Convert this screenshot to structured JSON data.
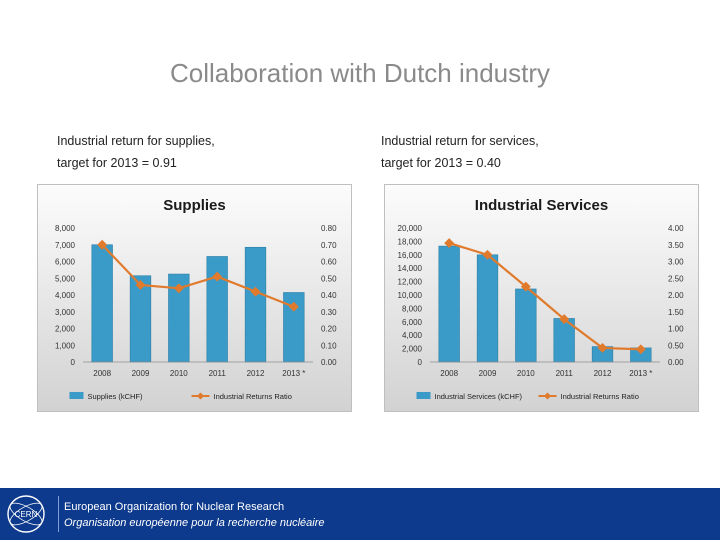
{
  "title": "Collaboration with Dutch industry",
  "captions": {
    "left": {
      "line1": "Industrial return for supplies,",
      "line2": "target for 2013 = 0.91"
    },
    "right": {
      "line1": "Industrial return for services,",
      "line2": "target for 2013 = 0.40"
    }
  },
  "footer": {
    "org_en": "European Organization for Nuclear Research",
    "org_fr": "Organisation européenne pour la recherche nucléaire",
    "logo_text": "CERN"
  },
  "colors": {
    "bar": "#3a9bc8",
    "line": "#e07a2c",
    "chart_bg_top": "#fcfcfc",
    "chart_bg_bottom": "#d2d2d2",
    "footer_bg": "#0d3a8c"
  },
  "chart_data": [
    {
      "type": "bar",
      "title": "Supplies",
      "categories": [
        "2008",
        "2009",
        "2010",
        "2011",
        "2012",
        "2013 *"
      ],
      "series": [
        {
          "name": "Supplies (kCHF)",
          "axis": "left",
          "kind": "bar",
          "values": [
            7000,
            5150,
            5250,
            6300,
            6850,
            4150
          ]
        },
        {
          "name": "Industrial Returns Ratio",
          "axis": "right",
          "kind": "line",
          "values": [
            0.7,
            0.46,
            0.44,
            0.51,
            0.42,
            0.33
          ]
        }
      ],
      "ylim": [
        0,
        8000
      ],
      "y2lim": [
        0,
        0.8
      ],
      "yticks": [
        "0",
        "1,000",
        "2,000",
        "3,000",
        "4,000",
        "5,000",
        "6,000",
        "7,000",
        "8,000"
      ],
      "y2ticks": [
        "0.00",
        "0.10",
        "0.20",
        "0.30",
        "0.40",
        "0.50",
        "0.60",
        "0.70",
        "0.80"
      ],
      "legend": "bottom",
      "grid": false
    },
    {
      "type": "bar",
      "title": "Industrial Services",
      "categories": [
        "2008",
        "2009",
        "2010",
        "2011",
        "2012",
        "2013 *"
      ],
      "series": [
        {
          "name": "Industrial Services (kCHF)",
          "axis": "left",
          "kind": "bar",
          "values": [
            17300,
            16000,
            10900,
            6500,
            2300,
            2100
          ]
        },
        {
          "name": "Industrial Returns Ratio",
          "axis": "right",
          "kind": "line",
          "values": [
            3.55,
            3.2,
            2.25,
            1.28,
            0.42,
            0.38
          ]
        }
      ],
      "ylim": [
        0,
        20000
      ],
      "y2lim": [
        0,
        4
      ],
      "yticks": [
        "0",
        "2,000",
        "4,000",
        "6,000",
        "8,000",
        "10,000",
        "12,000",
        "14,000",
        "16,000",
        "18,000",
        "20,000"
      ],
      "y2ticks": [
        "0.00",
        "0.50",
        "1.00",
        "1.50",
        "2.00",
        "2.50",
        "3.00",
        "3.50",
        "4.00"
      ],
      "legend": "bottom",
      "grid": false
    }
  ]
}
